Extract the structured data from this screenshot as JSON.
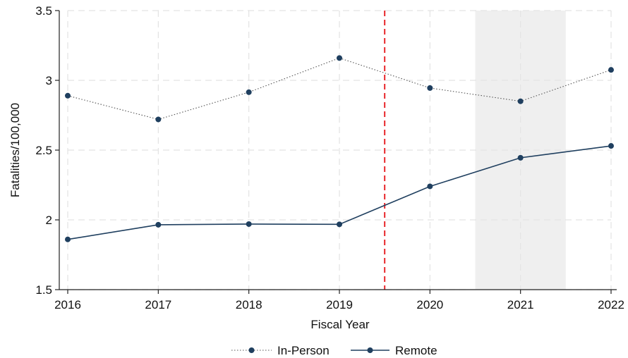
{
  "chart_data": {
    "type": "line",
    "title": "",
    "xlabel": "Fiscal Year",
    "ylabel": "Fatalities/100,000",
    "x": [
      2016,
      2017,
      2018,
      2019,
      2020,
      2021,
      2022
    ],
    "x_tick_labels": [
      "2016",
      "2017",
      "2018",
      "2019",
      "2020",
      "2021",
      "2022"
    ],
    "xlim": [
      2016,
      2022
    ],
    "ylim": [
      1.5,
      3.5
    ],
    "y_ticks": [
      1.5,
      2,
      2.5,
      3,
      3.5
    ],
    "y_tick_labels": [
      "1.5",
      "2",
      "2.5",
      "3",
      "3.5"
    ],
    "grid": true,
    "series": [
      {
        "name": "In-Person",
        "style": "dotted",
        "color": "#1f3f5f",
        "values": [
          2.89,
          2.72,
          2.915,
          3.16,
          2.945,
          2.85,
          3.075
        ]
      },
      {
        "name": "Remote",
        "style": "solid",
        "color": "#1f3f5f",
        "values": [
          1.86,
          1.965,
          1.97,
          1.968,
          2.24,
          2.445,
          2.53
        ]
      }
    ],
    "reference_line": {
      "x": 2019.5,
      "color": "#e8262a",
      "style": "dashed"
    },
    "shaded_region": {
      "x": [
        2020.5,
        2021.5
      ],
      "color": "#efefef"
    },
    "legend_position": "bottom-center"
  }
}
